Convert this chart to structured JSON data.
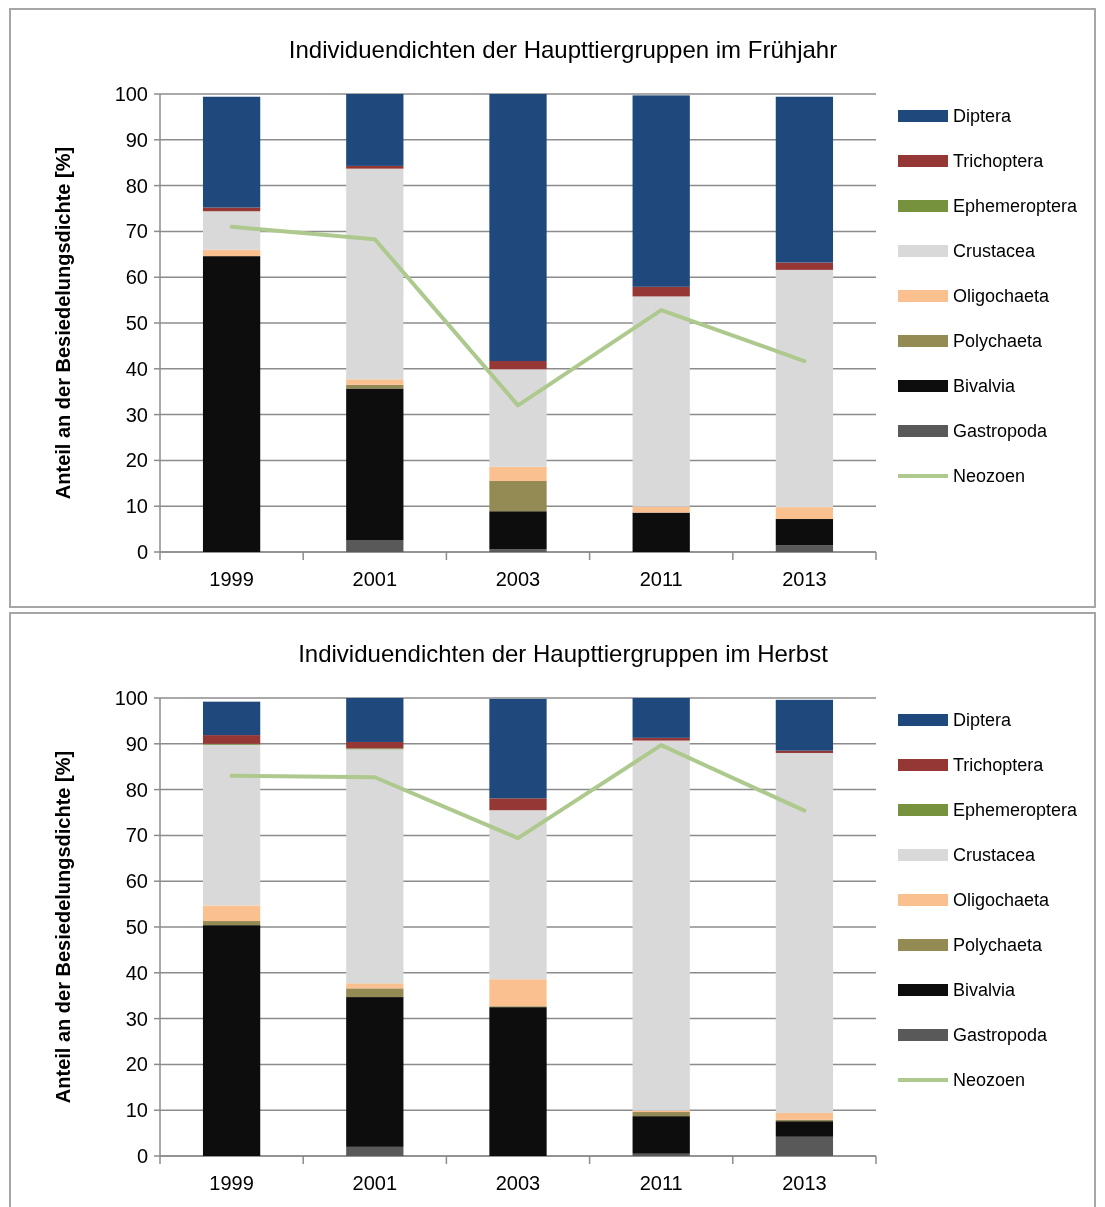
{
  "chart_data": [
    {
      "type": "bar",
      "stacked": true,
      "title": "Individuendichten der Haupttiergruppen im Frühjahr",
      "ylabel": "Anteil an der Besiedelungsdichte [%]",
      "categories": [
        "1999",
        "2001",
        "2003",
        "2011",
        "2013"
      ],
      "ylim": [
        0,
        100
      ],
      "yticks": [
        0,
        10,
        20,
        30,
        40,
        50,
        60,
        70,
        80,
        90,
        100
      ],
      "grid": "y",
      "legend": "right",
      "series": [
        {
          "name": "Gastropoda",
          "color": "#595959",
          "values": [
            null,
            2.5,
            0.6,
            null,
            1.5
          ]
        },
        {
          "name": "Bivalvia",
          "color": "#0d0d0d",
          "values": [
            64.6,
            33.2,
            8.3,
            8.6,
            5.7
          ]
        },
        {
          "name": "Polychaeta",
          "color": "#948a54",
          "values": [
            0,
            0.8,
            6.6,
            0,
            0
          ]
        },
        {
          "name": "Oligochaeta",
          "color": "#fac090",
          "values": [
            1.4,
            1.2,
            3.1,
            1.3,
            2.6
          ]
        },
        {
          "name": "Crustacea",
          "color": "#d9d9d9",
          "values": [
            8.4,
            46,
            21.3,
            45.9,
            51.8
          ]
        },
        {
          "name": "Ephemeroptera",
          "color": "#76923c",
          "values": [
            0,
            0,
            0,
            0,
            0
          ]
        },
        {
          "name": "Trichoptera",
          "color": "#953735",
          "values": [
            0.8,
            0.6,
            1.8,
            2.1,
            1.6
          ]
        },
        {
          "name": "Diptera",
          "color": "#1f497d",
          "values": [
            24.2,
            15.7,
            58.3,
            41.8,
            36.2
          ]
        },
        {
          "name": "Neozoen",
          "type": "line",
          "color": "#aec98e",
          "values": [
            71,
            68.3,
            32,
            52.8,
            41.7
          ]
        }
      ]
    },
    {
      "type": "bar",
      "stacked": true,
      "title": "Individuendichten der Haupttiergruppen im Herbst",
      "ylabel": "Anteil an der Besiedelungsdichte [%]",
      "categories": [
        "1999",
        "2001",
        "2003",
        "2011",
        "2013"
      ],
      "ylim": [
        0,
        100
      ],
      "yticks": [
        0,
        10,
        20,
        30,
        40,
        50,
        60,
        70,
        80,
        90,
        100
      ],
      "grid": "y",
      "legend": "right",
      "series": [
        {
          "name": "Gastropoda",
          "color": "#595959",
          "values": [
            null,
            2,
            null,
            0.5,
            4.2
          ]
        },
        {
          "name": "Bivalvia",
          "color": "#0d0d0d",
          "values": [
            50.4,
            32.7,
            32.5,
            8.2,
            3.4
          ]
        },
        {
          "name": "Polychaeta",
          "color": "#948a54",
          "values": [
            0.9,
            1.9,
            0.2,
            0.9,
            0.3
          ]
        },
        {
          "name": "Oligochaeta",
          "color": "#fac090",
          "values": [
            3.4,
            1.1,
            5.9,
            0.3,
            1.5
          ]
        },
        {
          "name": "Crustacea",
          "color": "#d9d9d9",
          "values": [
            35.1,
            51.1,
            36.9,
            80.8,
            78.6
          ]
        },
        {
          "name": "Ephemeroptera",
          "color": "#76923c",
          "values": [
            0.2,
            0.2,
            0,
            0,
            0
          ]
        },
        {
          "name": "Trichoptera",
          "color": "#953735",
          "values": [
            1.9,
            1.4,
            2.6,
            0.6,
            0.5
          ]
        },
        {
          "name": "Diptera",
          "color": "#1f497d",
          "values": [
            7.3,
            9.6,
            21.7,
            8.7,
            11.1
          ]
        },
        {
          "name": "Neozoen",
          "type": "line",
          "color": "#aec98e",
          "values": [
            83,
            82.7,
            69.4,
            89.7,
            75.4
          ]
        }
      ]
    }
  ]
}
